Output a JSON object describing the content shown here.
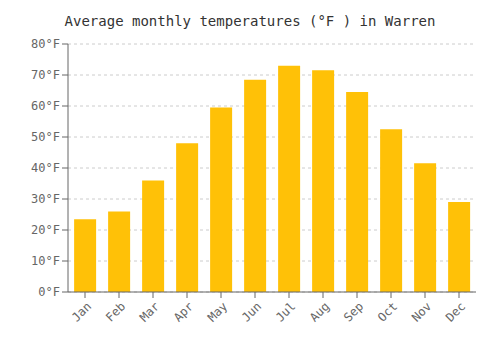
{
  "chart_data": {
    "type": "bar",
    "title": "Average monthly temperatures (°F ) in Warren",
    "categories": [
      "Jan",
      "Feb",
      "Mar",
      "Apr",
      "May",
      "Jun",
      "Jul",
      "Aug",
      "Sep",
      "Oct",
      "Nov",
      "Dec"
    ],
    "values": [
      23.5,
      26.0,
      36.0,
      48.0,
      59.5,
      68.5,
      73.0,
      71.5,
      64.5,
      52.5,
      41.5,
      29.0
    ],
    "color": "#FFC107",
    "ylim": [
      0,
      80
    ],
    "yticks": [
      {
        "value": 0,
        "label": "0°F"
      },
      {
        "value": 10,
        "label": "10°F"
      },
      {
        "value": 20,
        "label": "20°F"
      },
      {
        "value": 30,
        "label": "30°F"
      },
      {
        "value": 40,
        "label": "40°F"
      },
      {
        "value": 50,
        "label": "50°F"
      },
      {
        "value": 60,
        "label": "60°F"
      },
      {
        "value": 70,
        "label": "70°F"
      },
      {
        "value": 80,
        "label": "80°F"
      }
    ],
    "grid": true
  }
}
